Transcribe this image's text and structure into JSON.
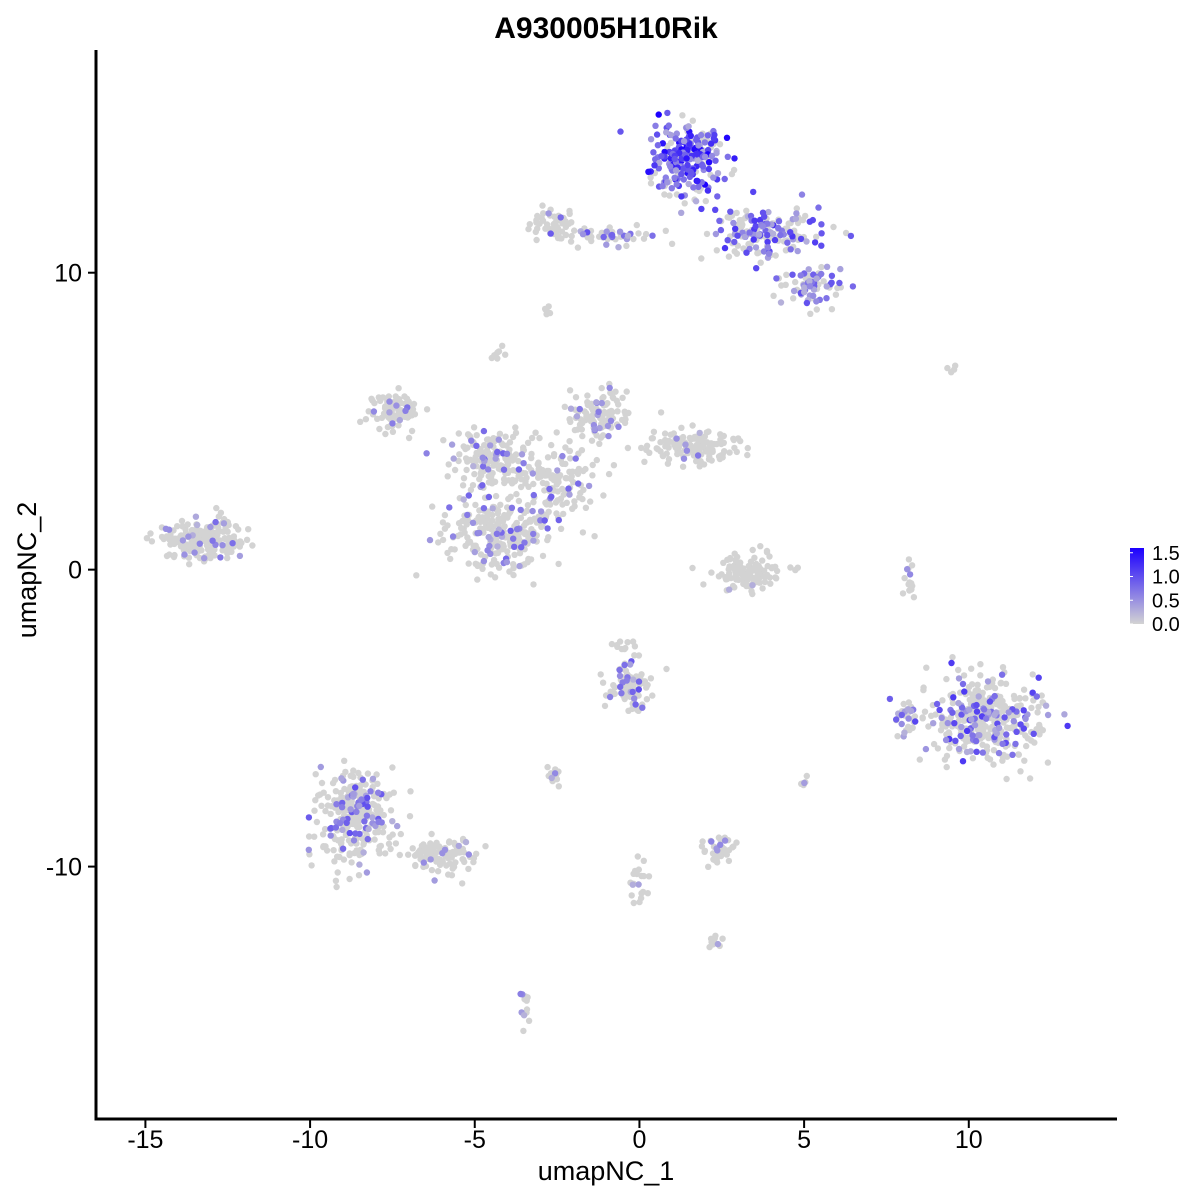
{
  "chart_data": {
    "type": "scatter",
    "title": "A930005H10Rik",
    "xlabel": "umapNC_1",
    "ylabel": "umapNC_2",
    "xlim": [
      -16.5,
      14.5
    ],
    "ylim": [
      -18.5,
      17.5
    ],
    "xticks": [
      -15,
      -10,
      -5,
      0,
      5,
      10
    ],
    "xtick_labels": [
      "-15",
      "-10",
      "-5",
      "0",
      "5",
      "10"
    ],
    "yticks": [
      10,
      0,
      -10
    ],
    "ytick_labels": [
      "10",
      "0",
      "-10"
    ],
    "grid": false,
    "legend": {
      "position": "right",
      "type": "colorbar",
      "labels": [
        "1.5",
        "1.0",
        "0.5",
        "0.0"
      ],
      "values": [
        1.5,
        1.0,
        0.5,
        0.0
      ],
      "range": [
        0,
        1.6
      ],
      "color_low": "#d3d3d3",
      "color_high": "#1c00ff"
    },
    "clusters": [
      {
        "center": [
          1.5,
          13.9
        ],
        "spread": [
          0.9,
          1.1
        ],
        "n": 260,
        "expr_frac": 0.75,
        "expr_max": 1.6
      },
      {
        "center": [
          3.8,
          11.4
        ],
        "spread": [
          1.5,
          0.8
        ],
        "n": 170,
        "expr_frac": 0.45,
        "expr_max": 1.2
      },
      {
        "center": [
          5.2,
          9.6
        ],
        "spread": [
          0.8,
          0.6
        ],
        "n": 70,
        "expr_frac": 0.45,
        "expr_max": 1.0
      },
      {
        "center": [
          -2.6,
          11.6
        ],
        "spread": [
          0.6,
          0.5
        ],
        "n": 60,
        "expr_frac": 0.05,
        "expr_max": 1.0
      },
      {
        "center": [
          -0.8,
          11.2
        ],
        "spread": [
          1.4,
          0.3
        ],
        "n": 50,
        "expr_frac": 0.25,
        "expr_max": 1.0
      },
      {
        "center": [
          -7.4,
          5.3
        ],
        "spread": [
          0.8,
          0.6
        ],
        "n": 90,
        "expr_frac": 0.15,
        "expr_max": 0.9
      },
      {
        "center": [
          -4.4,
          3.8
        ],
        "spread": [
          1.2,
          0.9
        ],
        "n": 170,
        "expr_frac": 0.15,
        "expr_max": 0.9
      },
      {
        "center": [
          -4.3,
          1.2
        ],
        "spread": [
          1.4,
          1.2
        ],
        "n": 250,
        "expr_frac": 0.18,
        "expr_max": 0.9
      },
      {
        "center": [
          -1.2,
          5.2
        ],
        "spread": [
          0.9,
          0.8
        ],
        "n": 110,
        "expr_frac": 0.15,
        "expr_max": 0.8
      },
      {
        "center": [
          1.6,
          4.1
        ],
        "spread": [
          1.2,
          0.5
        ],
        "n": 140,
        "expr_frac": 0.08,
        "expr_max": 0.7
      },
      {
        "center": [
          -2.5,
          3.0
        ],
        "spread": [
          1.1,
          1.2
        ],
        "n": 130,
        "expr_frac": 0.15,
        "expr_max": 0.9
      },
      {
        "center": [
          -13.2,
          1.0
        ],
        "spread": [
          1.1,
          0.6
        ],
        "n": 210,
        "expr_frac": 0.1,
        "expr_max": 0.8
      },
      {
        "center": [
          3.2,
          -0.1
        ],
        "spread": [
          0.9,
          0.6
        ],
        "n": 110,
        "expr_frac": 0.02,
        "expr_max": 0.5
      },
      {
        "center": [
          10.4,
          -5.0
        ],
        "spread": [
          1.5,
          1.3
        ],
        "n": 380,
        "expr_frac": 0.25,
        "expr_max": 1.2
      },
      {
        "center": [
          8.1,
          -4.9
        ],
        "spread": [
          0.3,
          0.6
        ],
        "n": 25,
        "expr_frac": 0.3,
        "expr_max": 1.0
      },
      {
        "center": [
          -8.6,
          -8.3
        ],
        "spread": [
          1.0,
          1.3
        ],
        "n": 300,
        "expr_frac": 0.18,
        "expr_max": 1.0
      },
      {
        "center": [
          -6.0,
          -9.6
        ],
        "spread": [
          1.1,
          0.5
        ],
        "n": 110,
        "expr_frac": 0.1,
        "expr_max": 0.8
      },
      {
        "center": [
          -0.3,
          -3.9
        ],
        "spread": [
          0.6,
          0.7
        ],
        "n": 100,
        "expr_frac": 0.2,
        "expr_max": 1.0
      },
      {
        "center": [
          2.4,
          -9.4
        ],
        "spread": [
          0.4,
          0.4
        ],
        "n": 45,
        "expr_frac": 0.1,
        "expr_max": 0.7
      },
      {
        "center": [
          -2.6,
          -6.9
        ],
        "spread": [
          0.3,
          0.2
        ],
        "n": 18,
        "expr_frac": 0.15,
        "expr_max": 0.7
      },
      {
        "center": [
          8.2,
          -0.4
        ],
        "spread": [
          0.2,
          0.5
        ],
        "n": 15,
        "expr_frac": 0.1,
        "expr_max": 0.6
      },
      {
        "center": [
          5.0,
          -7.2
        ],
        "spread": [
          0.1,
          0.15
        ],
        "n": 6,
        "expr_frac": 0.2,
        "expr_max": 0.7
      },
      {
        "center": [
          -3.5,
          -14.8
        ],
        "spread": [
          0.2,
          0.5
        ],
        "n": 12,
        "expr_frac": 0.2,
        "expr_max": 0.7
      },
      {
        "center": [
          -2.8,
          8.7
        ],
        "spread": [
          0.15,
          0.3
        ],
        "n": 6,
        "expr_frac": 0.0,
        "expr_max": 0.0
      },
      {
        "center": [
          -4.3,
          7.3
        ],
        "spread": [
          0.2,
          0.2
        ],
        "n": 8,
        "expr_frac": 0.0,
        "expr_max": 0.0
      },
      {
        "center": [
          9.6,
          6.7
        ],
        "spread": [
          0.2,
          0.15
        ],
        "n": 4,
        "expr_frac": 0.0,
        "expr_max": 0.0
      },
      {
        "center": [
          0.0,
          -10.8
        ],
        "spread": [
          0.3,
          1.0
        ],
        "n": 20,
        "expr_frac": 0.05,
        "expr_max": 0.5
      },
      {
        "center": [
          2.3,
          -12.5
        ],
        "spread": [
          0.3,
          0.2
        ],
        "n": 10,
        "expr_frac": 0.05,
        "expr_max": 0.5
      },
      {
        "center": [
          -0.5,
          -2.6
        ],
        "spread": [
          0.3,
          0.2
        ],
        "n": 10,
        "expr_frac": 0.0,
        "expr_max": 0.0
      }
    ]
  }
}
